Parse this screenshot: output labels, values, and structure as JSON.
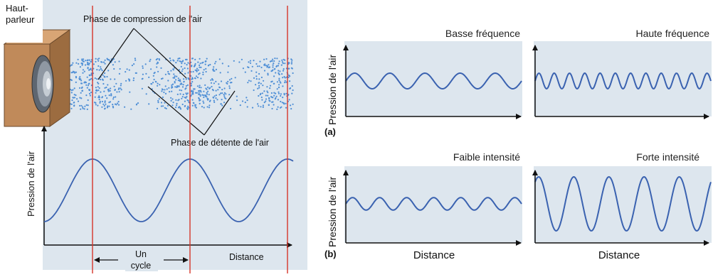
{
  "left_panel": {
    "speaker_label_line1": "Haut-",
    "speaker_label_line2": "parleur",
    "compression_label": "Phase de compression de l'air",
    "rarefaction_label": "Phase de détente de l'air",
    "y_axis_label": "Pression de l'air",
    "x_axis_label": "Distance",
    "cycle_label_line1": "Un",
    "cycle_label_line2": "cycle"
  },
  "right_panel": {
    "y_axis_label_a": "Pression de l'air",
    "y_axis_label_b": "Pression de l'air",
    "marker_a": "(a)",
    "marker_b": "(b)",
    "x_axis_label_left": "Distance",
    "x_axis_label_right": "Distance",
    "plots": [
      {
        "title": "Basse fréquence",
        "cycles": 5,
        "amplitude": 0.5
      },
      {
        "title": "Haute fréquence",
        "cycles": 11.5,
        "amplitude": 0.5
      },
      {
        "title": "Faible intensité",
        "cycles": 6.5,
        "amplitude": 0.2
      },
      {
        "title": "Forte intensité",
        "cycles": 5,
        "amplitude": 1.0
      }
    ]
  },
  "colors": {
    "panel_bg": "#dde6ee",
    "wave": "#3a62b0",
    "dots": "#4f8fd6",
    "red_line": "#d6362a",
    "speaker_wood": "#c08a5a",
    "axis": "#111111"
  }
}
